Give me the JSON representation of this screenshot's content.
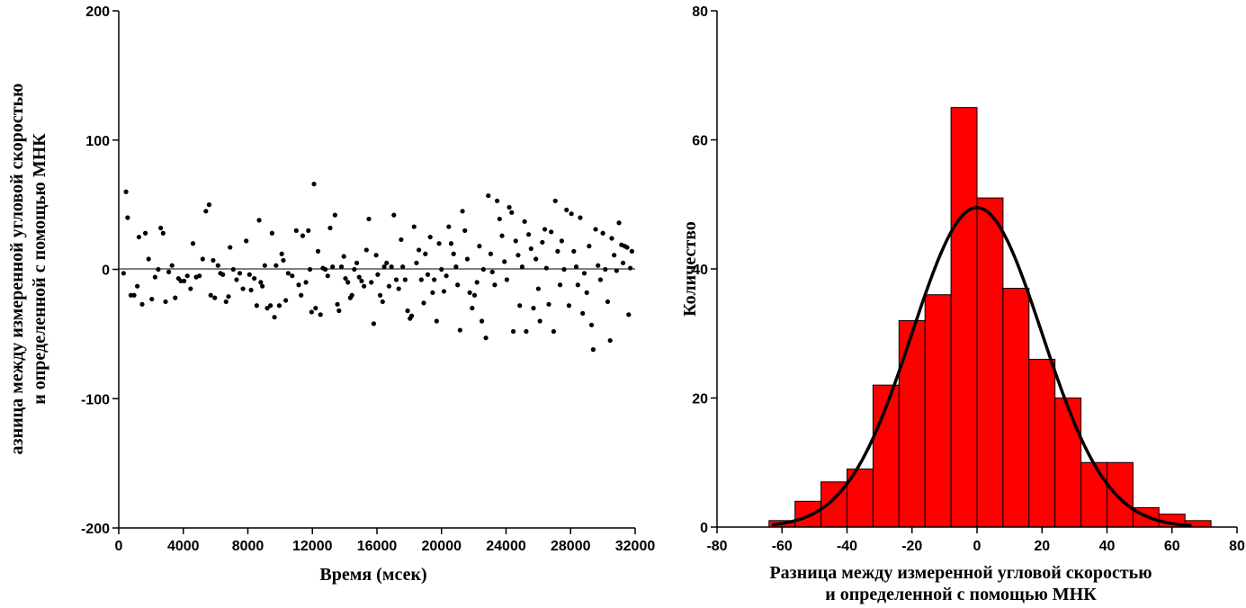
{
  "chart_data": [
    {
      "type": "scatter",
      "xlabel": "Время (мсек)",
      "ylabel_lines": [
        "азница между измеренной угловой скоростью",
        "и определенной с помощью МНК"
      ],
      "xlim": [
        0,
        32000
      ],
      "ylim": [
        -200,
        200
      ],
      "xticks": [
        "0",
        "4000",
        "8000",
        "12000",
        "16000",
        "20000",
        "24000",
        "28000",
        "32000"
      ],
      "yticks": [
        "-200",
        "-100",
        "0",
        "100",
        "200"
      ],
      "reference_line_y": 0,
      "points": [
        [
          300,
          -3
        ],
        [
          450,
          60
        ],
        [
          550,
          40
        ],
        [
          750,
          -20
        ],
        [
          950,
          -20
        ],
        [
          1150,
          -13
        ],
        [
          1250,
          25
        ],
        [
          1450,
          -27
        ],
        [
          1650,
          28
        ],
        [
          1850,
          8
        ],
        [
          2050,
          -23
        ],
        [
          2250,
          -6
        ],
        [
          2450,
          0
        ],
        [
          2600,
          32
        ],
        [
          2750,
          28
        ],
        [
          2900,
          -25
        ],
        [
          3100,
          -2
        ],
        [
          3300,
          3
        ],
        [
          3500,
          -22
        ],
        [
          3700,
          -7
        ],
        [
          3850,
          -9
        ],
        [
          4050,
          -9
        ],
        [
          4250,
          -5
        ],
        [
          4450,
          -15
        ],
        [
          4600,
          20
        ],
        [
          4800,
          -6
        ],
        [
          5000,
          -5
        ],
        [
          5200,
          8
        ],
        [
          5400,
          45
        ],
        [
          5600,
          50
        ],
        [
          5700,
          -20
        ],
        [
          5850,
          7
        ],
        [
          5950,
          -22
        ],
        [
          6150,
          3
        ],
        [
          6300,
          -3
        ],
        [
          6450,
          -4
        ],
        [
          6650,
          -25
        ],
        [
          6800,
          -21
        ],
        [
          6900,
          17
        ],
        [
          7100,
          0
        ],
        [
          7300,
          -8
        ],
        [
          7500,
          -3
        ],
        [
          7700,
          -15
        ],
        [
          7900,
          22
        ],
        [
          8100,
          -4
        ],
        [
          8200,
          -16
        ],
        [
          8400,
          -7
        ],
        [
          8550,
          -28
        ],
        [
          8700,
          38
        ],
        [
          8800,
          -10
        ],
        [
          8900,
          -13
        ],
        [
          9050,
          3
        ],
        [
          9200,
          -30
        ],
        [
          9400,
          -28
        ],
        [
          9500,
          28
        ],
        [
          9650,
          -37
        ],
        [
          9750,
          3
        ],
        [
          9950,
          -28
        ],
        [
          10100,
          12
        ],
        [
          10200,
          7
        ],
        [
          10350,
          -24
        ],
        [
          10500,
          -3
        ],
        [
          10750,
          -5
        ],
        [
          11000,
          30
        ],
        [
          11150,
          -12
        ],
        [
          11300,
          -20
        ],
        [
          11400,
          26
        ],
        [
          11600,
          -10
        ],
        [
          11750,
          30
        ],
        [
          11850,
          0
        ],
        [
          11950,
          -33
        ],
        [
          12100,
          66
        ],
        [
          12200,
          -30
        ],
        [
          12350,
          14
        ],
        [
          12500,
          -35
        ],
        [
          12650,
          1
        ],
        [
          12800,
          0
        ],
        [
          12950,
          -5
        ],
        [
          13100,
          32
        ],
        [
          13250,
          2
        ],
        [
          13400,
          42
        ],
        [
          13550,
          -27
        ],
        [
          13650,
          -32
        ],
        [
          13800,
          2
        ],
        [
          13950,
          10
        ],
        [
          14050,
          -7
        ],
        [
          14200,
          -10
        ],
        [
          14350,
          -22
        ],
        [
          14450,
          -20
        ],
        [
          14600,
          0
        ],
        [
          14750,
          5
        ],
        [
          14900,
          -6
        ],
        [
          15050,
          -9
        ],
        [
          15200,
          -13
        ],
        [
          15350,
          15
        ],
        [
          15500,
          39
        ],
        [
          15650,
          -10
        ],
        [
          15800,
          -42
        ],
        [
          15950,
          11
        ],
        [
          16050,
          -4
        ],
        [
          16200,
          -20
        ],
        [
          16350,
          -25
        ],
        [
          16450,
          2
        ],
        [
          16600,
          5
        ],
        [
          16750,
          -13
        ],
        [
          16900,
          2
        ],
        [
          17050,
          42
        ],
        [
          17200,
          -8
        ],
        [
          17350,
          -15
        ],
        [
          17500,
          23
        ],
        [
          17600,
          2
        ],
        [
          17750,
          -8
        ],
        [
          17900,
          -32
        ],
        [
          18050,
          -38
        ],
        [
          18150,
          -36
        ],
        [
          18300,
          33
        ],
        [
          18450,
          5
        ],
        [
          18600,
          15
        ],
        [
          18750,
          -8
        ],
        [
          18900,
          -26
        ],
        [
          19000,
          12
        ],
        [
          19150,
          -4
        ],
        [
          19300,
          25
        ],
        [
          19450,
          -18
        ],
        [
          19550,
          -8
        ],
        [
          19700,
          -40
        ],
        [
          19850,
          20
        ],
        [
          20000,
          0
        ],
        [
          20150,
          -17
        ],
        [
          20300,
          -5
        ],
        [
          20450,
          33
        ],
        [
          20600,
          20
        ],
        [
          20750,
          12
        ],
        [
          20900,
          2
        ],
        [
          21000,
          -12
        ],
        [
          21150,
          -47
        ],
        [
          21300,
          45
        ],
        [
          21450,
          30
        ],
        [
          21600,
          8
        ],
        [
          21750,
          -18
        ],
        [
          21900,
          -30
        ],
        [
          22050,
          -20
        ],
        [
          22200,
          -10
        ],
        [
          22350,
          18
        ],
        [
          22500,
          -40
        ],
        [
          22600,
          0
        ],
        [
          22750,
          -53
        ],
        [
          22900,
          57
        ],
        [
          23050,
          12
        ],
        [
          23150,
          -2
        ],
        [
          23300,
          -12
        ],
        [
          23450,
          53
        ],
        [
          23600,
          39
        ],
        [
          23750,
          26
        ],
        [
          23900,
          6
        ],
        [
          24050,
          -8
        ],
        [
          24200,
          48
        ],
        [
          24350,
          44
        ],
        [
          24450,
          -48
        ],
        [
          24600,
          22
        ],
        [
          24750,
          11
        ],
        [
          24850,
          -28
        ],
        [
          25000,
          2
        ],
        [
          25150,
          37
        ],
        [
          25250,
          -48
        ],
        [
          25400,
          27
        ],
        [
          25550,
          16
        ],
        [
          25700,
          -30
        ],
        [
          25850,
          8
        ],
        [
          26000,
          -15
        ],
        [
          26100,
          -40
        ],
        [
          26250,
          21
        ],
        [
          26400,
          31
        ],
        [
          26500,
          1
        ],
        [
          26650,
          -27
        ],
        [
          26800,
          29
        ],
        [
          26950,
          -48
        ],
        [
          27050,
          53
        ],
        [
          27200,
          14
        ],
        [
          27350,
          -12
        ],
        [
          27450,
          22
        ],
        [
          27600,
          0
        ],
        [
          27750,
          46
        ],
        [
          27900,
          -28
        ],
        [
          28050,
          43
        ],
        [
          28200,
          14
        ],
        [
          28350,
          2
        ],
        [
          28450,
          -12
        ],
        [
          28600,
          40
        ],
        [
          28750,
          -34
        ],
        [
          28850,
          -3
        ],
        [
          29000,
          -18
        ],
        [
          29150,
          18
        ],
        [
          29300,
          -43
        ],
        [
          29400,
          -62
        ],
        [
          29550,
          31
        ],
        [
          29700,
          3
        ],
        [
          29850,
          -8
        ],
        [
          30000,
          28
        ],
        [
          30150,
          0
        ],
        [
          30300,
          -25
        ],
        [
          30450,
          -55
        ],
        [
          30550,
          24
        ],
        [
          30700,
          11
        ],
        [
          30850,
          -1
        ],
        [
          31000,
          36
        ],
        [
          31150,
          19
        ],
        [
          31250,
          5
        ],
        [
          31350,
          18
        ],
        [
          31500,
          17
        ],
        [
          31600,
          -35
        ],
        [
          31700,
          1
        ],
        [
          31800,
          14
        ]
      ]
    },
    {
      "type": "bar",
      "subtype": "histogram",
      "xlabel_lines": [
        "Разница между измеренной угловой скоростью",
        "и определенной с помощью МНК"
      ],
      "ylabel": "Количество",
      "xlim": [
        -80,
        80
      ],
      "ylim": [
        0,
        80
      ],
      "xticks": [
        "-80",
        "-60",
        "-40",
        "-20",
        "0",
        "20",
        "40",
        "60",
        "80"
      ],
      "yticks": [
        "0",
        "20",
        "40",
        "60",
        "80"
      ],
      "bar_color": "#ff0000",
      "bin_edges": [
        -64,
        -56,
        -48,
        -40,
        -32,
        -24,
        -16,
        -8,
        0,
        8,
        16,
        24,
        32,
        40,
        48,
        56,
        64,
        72
      ],
      "counts": [
        1,
        4,
        7,
        9,
        22,
        32,
        36,
        65,
        51,
        37,
        26,
        20,
        10,
        10,
        3,
        2,
        1
      ],
      "fit_curve": {
        "type": "gaussian",
        "mean": 0,
        "sigma": 20,
        "peak": 49.5,
        "x_range": [
          -63,
          66
        ],
        "color": "#000000"
      }
    }
  ]
}
